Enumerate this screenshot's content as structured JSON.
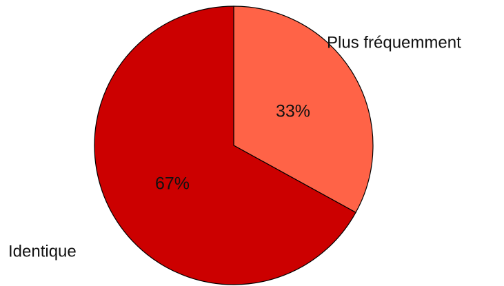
{
  "chart_data": {
    "type": "pie",
    "title": "",
    "start_angle_deg": 90,
    "direction": "clockwise",
    "slices": [
      {
        "label": "Plus fréquemment",
        "value": 33,
        "display": "33%",
        "color": "#ff6347"
      },
      {
        "label": "Identique",
        "value": 67,
        "display": "67%",
        "color": "#cc0000"
      }
    ],
    "border_color": "#000000",
    "legend": "none"
  }
}
